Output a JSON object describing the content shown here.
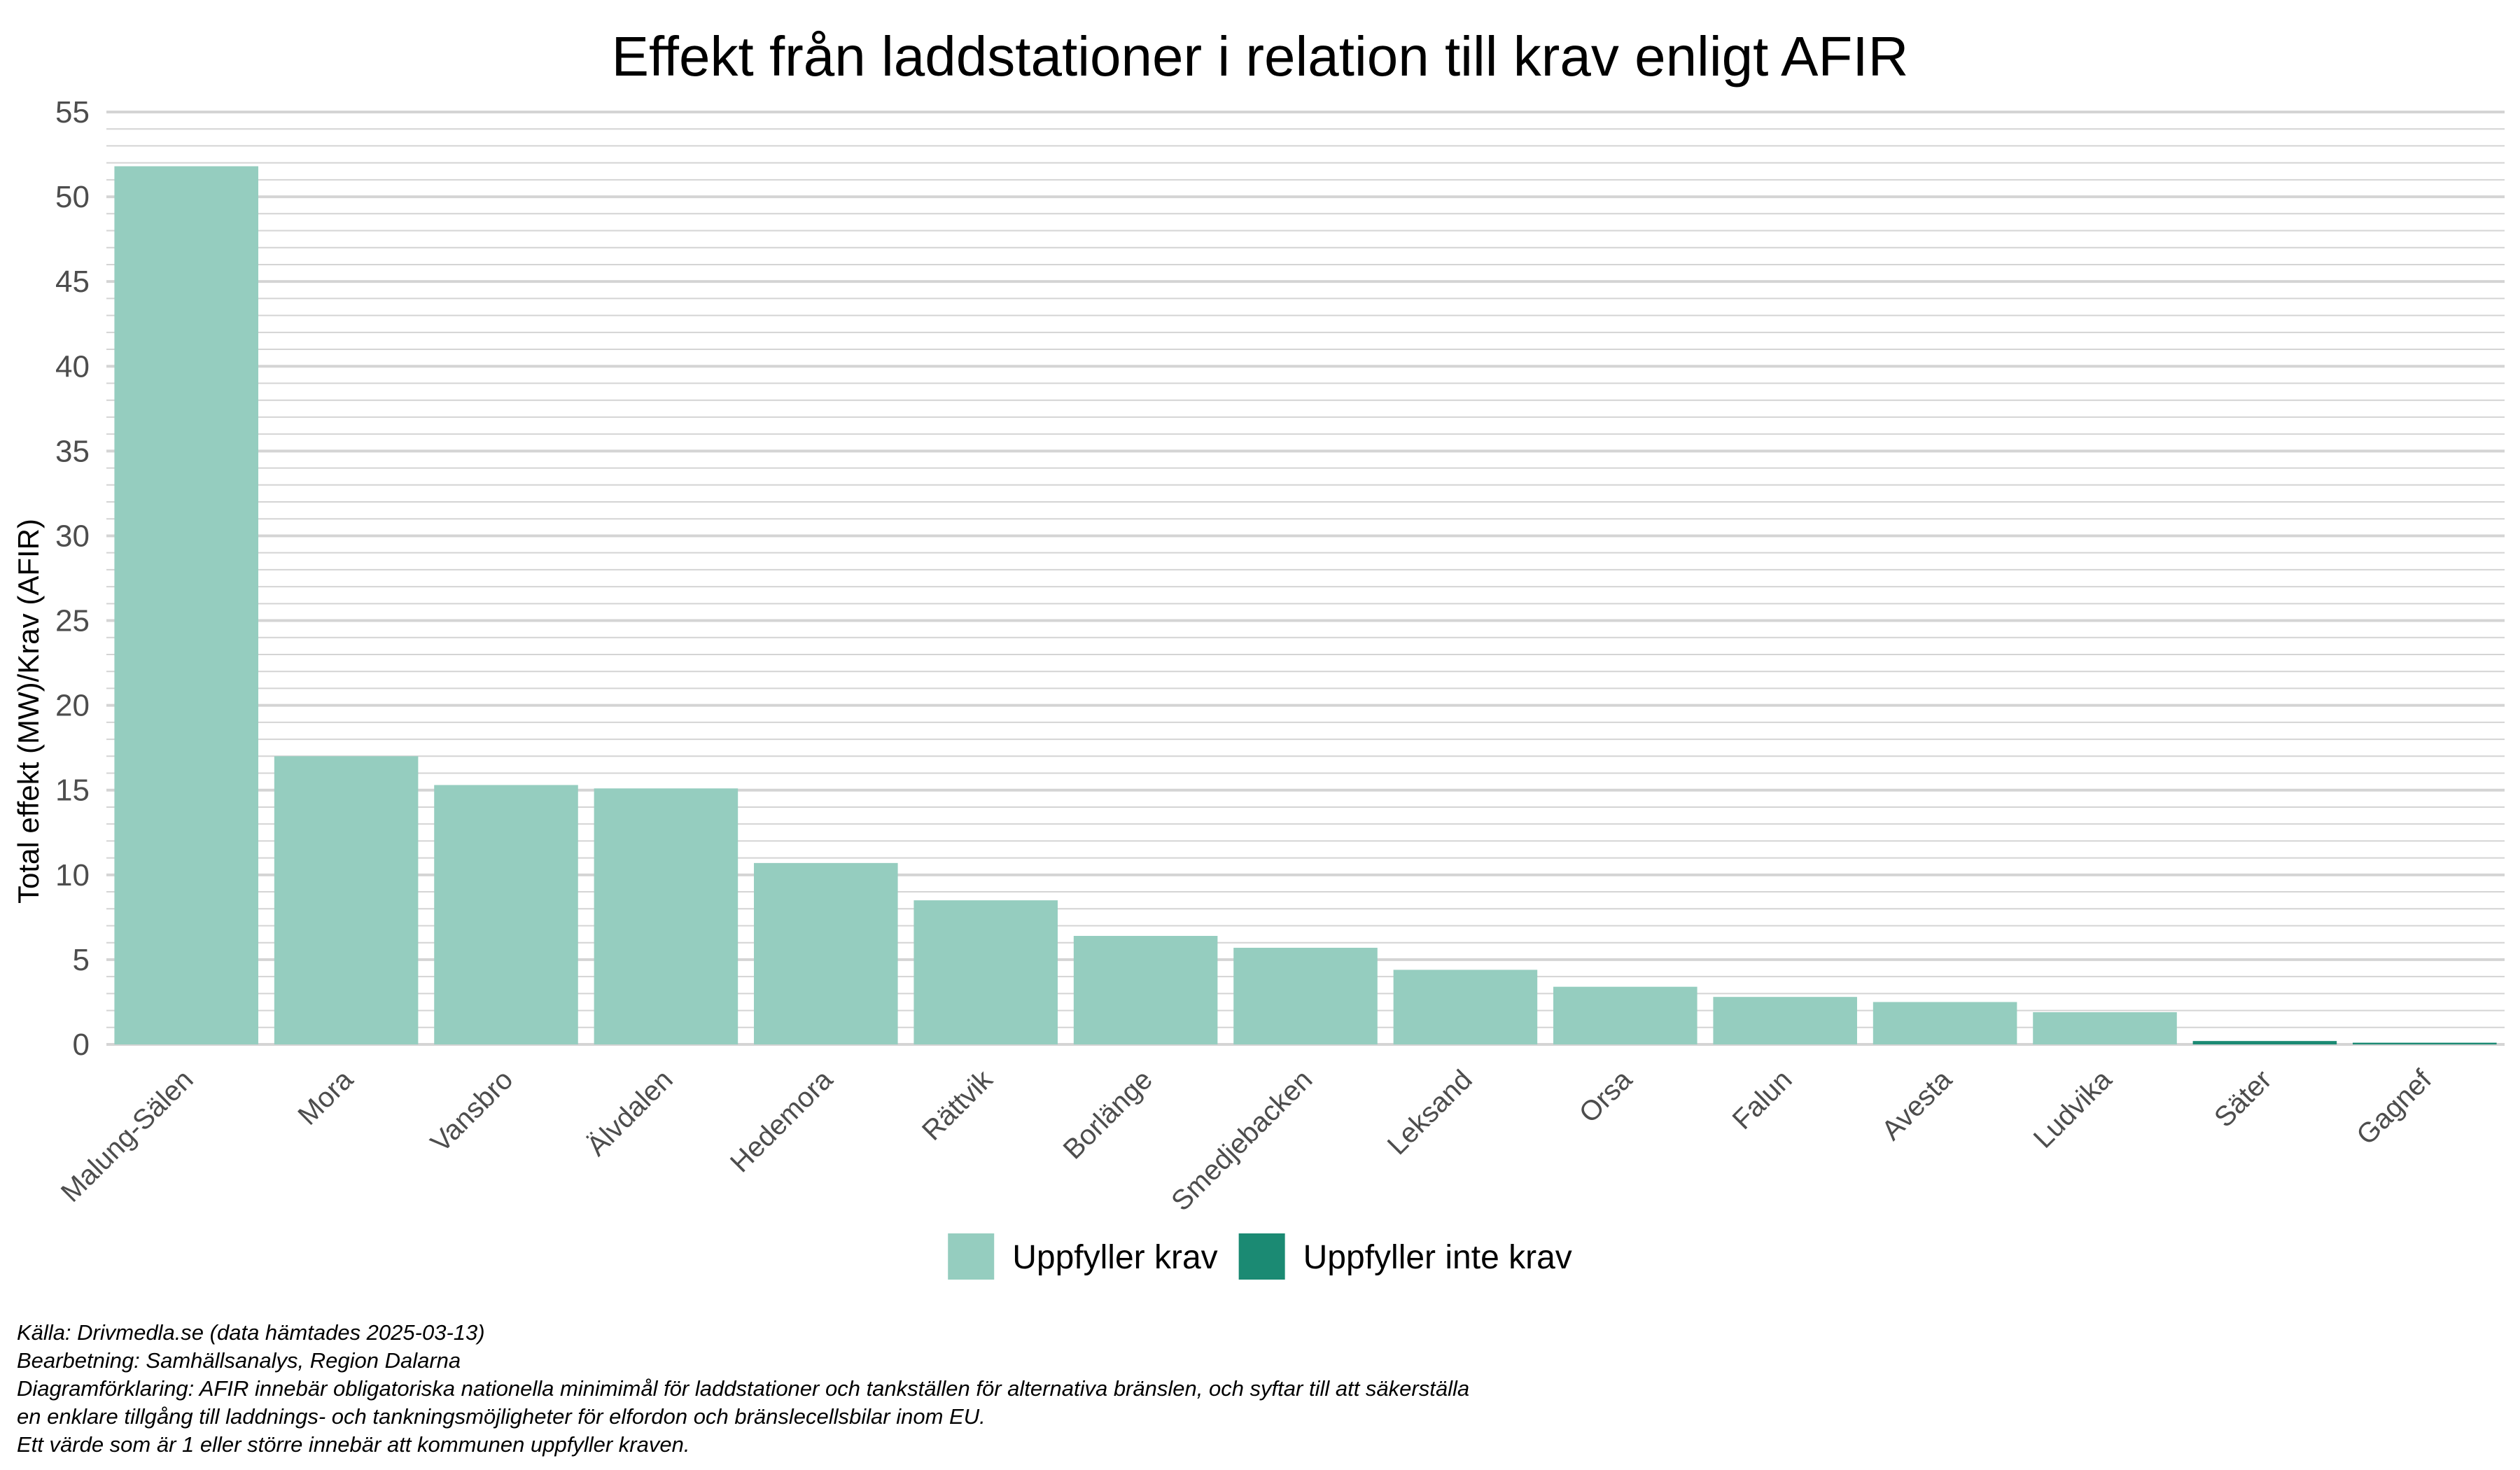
{
  "chart_data": {
    "type": "bar",
    "title": "Effekt från laddstationer i relation till krav enligt AFIR",
    "xlabel": "",
    "ylabel": "Total effekt (MW)/Krav (AFIR)",
    "ylim": [
      0,
      55
    ],
    "yticks": [
      0,
      5,
      10,
      15,
      20,
      25,
      30,
      35,
      40,
      45,
      50,
      55
    ],
    "grid": true,
    "legend_position": "bottom",
    "categories": [
      "Malung-Sälen",
      "Mora",
      "Vansbro",
      "Älvdalen",
      "Hedemora",
      "Rättvik",
      "Borlänge",
      "Smedjebacken",
      "Leksand",
      "Orsa",
      "Falun",
      "Avesta",
      "Ludvika",
      "Säter",
      "Gagnef"
    ],
    "values": [
      51.8,
      17.0,
      15.3,
      15.1,
      10.7,
      8.5,
      6.4,
      5.7,
      4.4,
      3.4,
      2.8,
      2.5,
      1.9,
      0.2,
      0.1
    ],
    "status": [
      "meets",
      "meets",
      "meets",
      "meets",
      "meets",
      "meets",
      "meets",
      "meets",
      "meets",
      "meets",
      "meets",
      "meets",
      "meets",
      "fails",
      "fails"
    ],
    "series_legend": [
      {
        "key": "meets",
        "name": "Uppfyller krav",
        "color": "#95cdbf"
      },
      {
        "key": "fails",
        "name": "Uppfyller inte krav",
        "color": "#1b8a73"
      }
    ]
  },
  "caption": {
    "lines": [
      "Källa:  Drivmedla.se (data hämtades 2025-03-13)",
      "Bearbetning: Samhällsanalys, Region Dalarna",
      "Diagramförklaring: AFIR innebär obligatoriska nationella minimimål för laddstationer och tankställen för alternativa bränslen, och syftar till att säkerställa",
      "en enklare tillgång till laddnings- och tankningsmöjligheter för elfordon och bränslecellsbilar inom EU.",
      "Ett värde som är 1 eller större innebär att kommunen uppfyller kraven."
    ]
  },
  "colors": {
    "grid": "#d4d4d4",
    "tick_text": "#4d4d4d"
  }
}
